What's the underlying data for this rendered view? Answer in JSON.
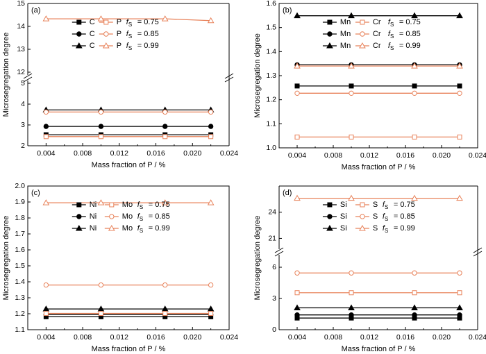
{
  "chart_data": [
    {
      "type": "line",
      "panel_label": "(a)",
      "xlabel": "Mass fraction of P / %",
      "ylabel": "Microsegregation degree",
      "xlim": [
        0.002,
        0.024
      ],
      "xticks": [
        "0.004",
        "0.008",
        "0.012",
        "0.016",
        "0.020",
        "0.024"
      ],
      "y_break": true,
      "ylim_lower": [
        2,
        5
      ],
      "ylim_upper": [
        12,
        15
      ],
      "yticks_lower": [
        "2",
        "3",
        "4",
        "5"
      ],
      "yticks_upper": [
        "12",
        "13",
        "14",
        "15"
      ],
      "x": [
        0.004,
        0.01,
        0.017,
        0.022
      ],
      "legend": {
        "position": "upper-center",
        "rows": [
          {
            "a": "C",
            "b": "P",
            "fs": "= 0.75"
          },
          {
            "a": "C",
            "b": "P",
            "fs": "= 0.85"
          },
          {
            "a": "C",
            "b": "P",
            "fs": "= 0.99"
          }
        ]
      },
      "series": [
        {
          "name": "C fS = 0.75",
          "marker": "square",
          "filled": true,
          "color": "#000000",
          "values": [
            2.53,
            2.53,
            2.53,
            2.53
          ]
        },
        {
          "name": "C fS = 0.85",
          "marker": "circle",
          "filled": true,
          "color": "#000000",
          "values": [
            2.93,
            2.93,
            2.93,
            2.93
          ]
        },
        {
          "name": "C fS = 0.99",
          "marker": "triangle",
          "filled": true,
          "color": "#000000",
          "values": [
            3.72,
            3.72,
            3.72,
            3.72
          ]
        },
        {
          "name": "P fS = 0.75",
          "marker": "square",
          "filled": false,
          "color": "#E8825A",
          "values": [
            2.44,
            2.44,
            2.44,
            2.44
          ]
        },
        {
          "name": "P fS = 0.85",
          "marker": "circle",
          "filled": false,
          "color": "#E8825A",
          "values": [
            3.62,
            3.62,
            3.62,
            3.62
          ]
        },
        {
          "name": "P fS = 0.99",
          "marker": "triangle",
          "filled": false,
          "color": "#E8825A",
          "values": [
            14.33,
            14.33,
            14.33,
            14.25
          ]
        }
      ]
    },
    {
      "type": "line",
      "panel_label": "(b)",
      "xlabel": "Mass fraction of P / %",
      "ylabel": "Microsegregation degree",
      "xlim": [
        0.002,
        0.024
      ],
      "xticks": [
        "0.004",
        "0.008",
        "0.012",
        "0.016",
        "0.020",
        "0.024"
      ],
      "ylim": [
        1.0,
        1.6
      ],
      "yticks": [
        "1.0",
        "1.1",
        "1.2",
        "1.3",
        "1.4",
        "1.5",
        "1.6"
      ],
      "x": [
        0.004,
        0.01,
        0.017,
        0.022
      ],
      "legend": {
        "position": "upper-center",
        "rows": [
          {
            "a": "Mn",
            "b": "Cr",
            "fs": "= 0.75"
          },
          {
            "a": "Mn",
            "b": "Cr",
            "fs": "= 0.85"
          },
          {
            "a": "Mn",
            "b": "Cr",
            "fs": "= 0.99"
          }
        ]
      },
      "series": [
        {
          "name": "Mn fS = 0.75",
          "marker": "square",
          "filled": true,
          "color": "#000000",
          "values": [
            1.257,
            1.257,
            1.257,
            1.257
          ]
        },
        {
          "name": "Mn fS = 0.85",
          "marker": "circle",
          "filled": true,
          "color": "#000000",
          "values": [
            1.345,
            1.345,
            1.345,
            1.345
          ]
        },
        {
          "name": "Mn fS = 0.99",
          "marker": "triangle",
          "filled": true,
          "color": "#000000",
          "values": [
            1.549,
            1.549,
            1.549,
            1.549
          ]
        },
        {
          "name": "Cr fS = 0.75",
          "marker": "square",
          "filled": false,
          "color": "#E8825A",
          "values": [
            1.045,
            1.045,
            1.045,
            1.045
          ]
        },
        {
          "name": "Cr fS = 0.85",
          "marker": "circle",
          "filled": false,
          "color": "#E8825A",
          "values": [
            1.227,
            1.227,
            1.227,
            1.227
          ]
        },
        {
          "name": "Cr fS = 0.99",
          "marker": "triangle",
          "filled": false,
          "color": "#E8825A",
          "values": [
            1.34,
            1.34,
            1.34,
            1.34
          ]
        }
      ]
    },
    {
      "type": "line",
      "panel_label": "(c)",
      "xlabel": "Mass fraction of P / %",
      "ylabel": "Microsegregation degree",
      "xlim": [
        0.002,
        0.024
      ],
      "xticks": [
        "0.004",
        "0.008",
        "0.012",
        "0.016",
        "0.020",
        "0.024"
      ],
      "ylim": [
        1.1,
        2.0
      ],
      "yticks": [
        "1.1",
        "1.2",
        "1.3",
        "1.4",
        "1.5",
        "1.6",
        "1.7",
        "1.8",
        "1.9",
        "2.0"
      ],
      "x": [
        0.004,
        0.01,
        0.017,
        0.022
      ],
      "legend": {
        "position": "upper-center",
        "rows": [
          {
            "a": "Ni",
            "b": "Mo",
            "fs": "= 0.75"
          },
          {
            "a": "Ni",
            "b": "Mo",
            "fs": "= 0.85"
          },
          {
            "a": "Ni",
            "b": "Mo",
            "fs": "= 0.99"
          }
        ]
      },
      "series": [
        {
          "name": "Ni fS = 0.75",
          "marker": "square",
          "filled": true,
          "color": "#000000",
          "values": [
            1.181,
            1.181,
            1.181,
            1.181
          ]
        },
        {
          "name": "Ni fS = 0.85",
          "marker": "circle",
          "filled": true,
          "color": "#000000",
          "values": [
            1.195,
            1.195,
            1.195,
            1.195
          ]
        },
        {
          "name": "Ni fS = 0.99",
          "marker": "triangle",
          "filled": true,
          "color": "#000000",
          "values": [
            1.23,
            1.23,
            1.23,
            1.23
          ]
        },
        {
          "name": "Mo fS = 0.75",
          "marker": "square",
          "filled": false,
          "color": "#E8825A",
          "values": [
            1.202,
            1.202,
            1.202,
            1.202
          ]
        },
        {
          "name": "Mo fS = 0.85",
          "marker": "circle",
          "filled": false,
          "color": "#E8825A",
          "values": [
            1.38,
            1.38,
            1.38,
            1.38
          ]
        },
        {
          "name": "Mo fS = 0.99",
          "marker": "triangle",
          "filled": false,
          "color": "#E8825A",
          "values": [
            1.895,
            1.895,
            1.895,
            1.895
          ]
        }
      ]
    },
    {
      "type": "line",
      "panel_label": "(d)",
      "xlabel": "Mass fraction of P / %",
      "ylabel": "Microsegregation degree",
      "xlim": [
        0.002,
        0.024
      ],
      "xticks": [
        "0.004",
        "0.008",
        "0.012",
        "0.016",
        "0.020",
        "0.024"
      ],
      "y_break": true,
      "ylim_lower": [
        0,
        7
      ],
      "ylim_upper": [
        20,
        27
      ],
      "yticks_lower": [
        "0",
        "3",
        "6"
      ],
      "yticks_upper": [
        "21",
        "24"
      ],
      "x": [
        0.004,
        0.01,
        0.017,
        0.022
      ],
      "legend": {
        "position": "upper-center",
        "rows": [
          {
            "a": "Si",
            "b": "S",
            "fs": "= 0.75"
          },
          {
            "a": "Si",
            "b": "S",
            "fs": "= 0.85"
          },
          {
            "a": "Si",
            "b": "S",
            "fs": "= 0.99"
          }
        ]
      },
      "series": [
        {
          "name": "Si fS = 0.75",
          "marker": "square",
          "filled": true,
          "color": "#000000",
          "values": [
            1.12,
            1.12,
            1.12,
            1.12
          ]
        },
        {
          "name": "Si fS = 0.85",
          "marker": "circle",
          "filled": true,
          "color": "#000000",
          "values": [
            1.42,
            1.42,
            1.42,
            1.42
          ]
        },
        {
          "name": "Si fS = 0.99",
          "marker": "triangle",
          "filled": true,
          "color": "#000000",
          "values": [
            2.1,
            2.1,
            2.1,
            2.1
          ]
        },
        {
          "name": "S fS = 0.75",
          "marker": "square",
          "filled": false,
          "color": "#E8825A",
          "values": [
            3.55,
            3.55,
            3.55,
            3.55
          ]
        },
        {
          "name": "S fS = 0.85",
          "marker": "circle",
          "filled": false,
          "color": "#E8825A",
          "values": [
            5.45,
            5.45,
            5.45,
            5.45
          ]
        },
        {
          "name": "S fS = 0.99",
          "marker": "triangle",
          "filled": false,
          "color": "#E8825A",
          "values": [
            25.6,
            25.6,
            25.6,
            25.6
          ]
        }
      ]
    }
  ]
}
